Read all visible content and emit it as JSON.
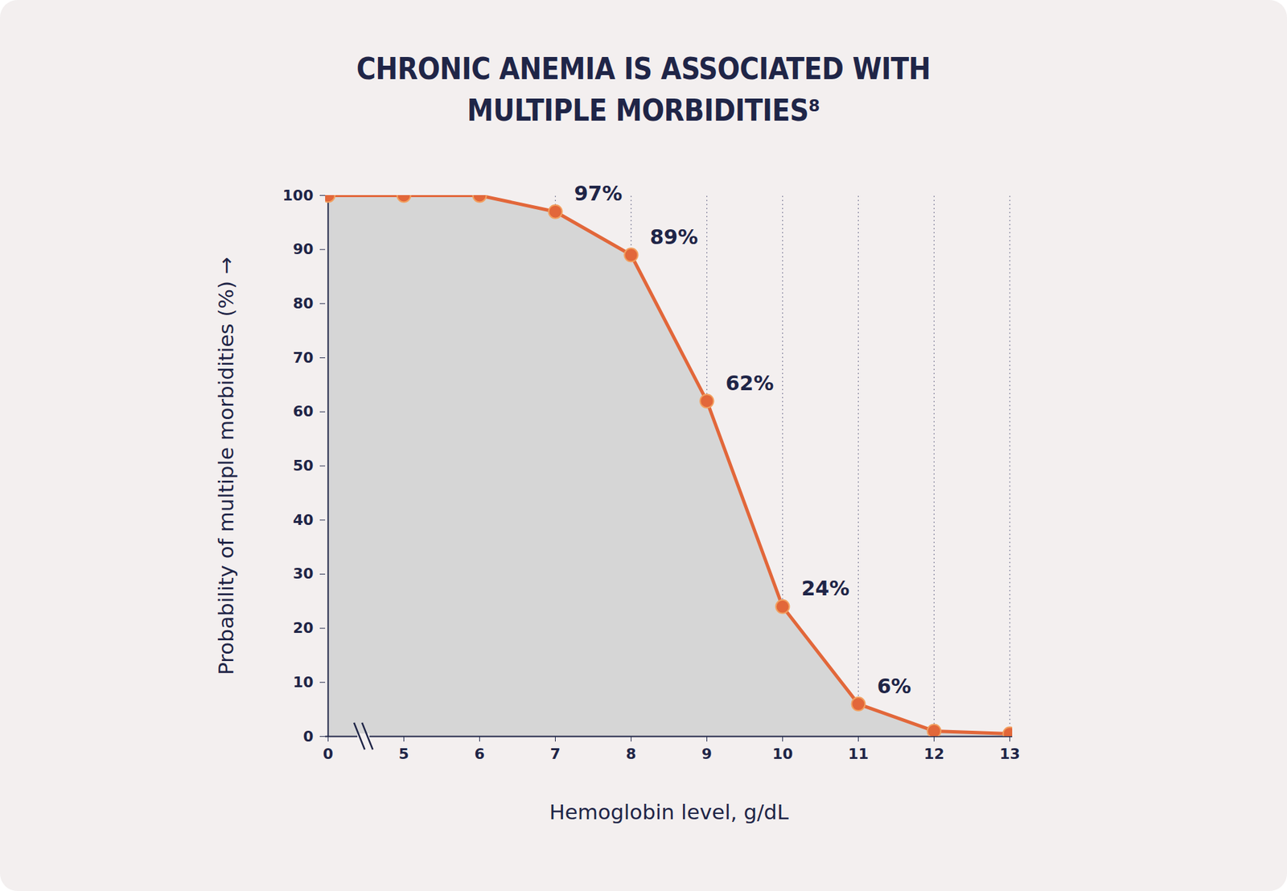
{
  "chart_data": {
    "type": "area",
    "title": "CHRONIC ANEMIA IS ASSOCIATED WITH\nMULTIPLE MORBIDITIES⁸",
    "x_label": "Hemoglobin level, g/dL",
    "y_label": "Probability of multiple morbidities (%)",
    "categories": [
      0,
      5,
      6,
      7,
      8,
      9,
      10,
      11,
      12,
      13
    ],
    "values": [
      100,
      100,
      100,
      97,
      89,
      62,
      24,
      6,
      1,
      0.5
    ],
    "value_labels": [
      null,
      null,
      null,
      "97%",
      "89%",
      "62%",
      "24%",
      "6%",
      null,
      null
    ],
    "ylim": [
      0,
      100
    ],
    "yticks": [
      0,
      10,
      20,
      30,
      40,
      50,
      60,
      70,
      80,
      90,
      100
    ],
    "grid": true,
    "data_labels": true,
    "color": "#e2673a",
    "marker": "circle",
    "line_style": "solid"
  }
}
